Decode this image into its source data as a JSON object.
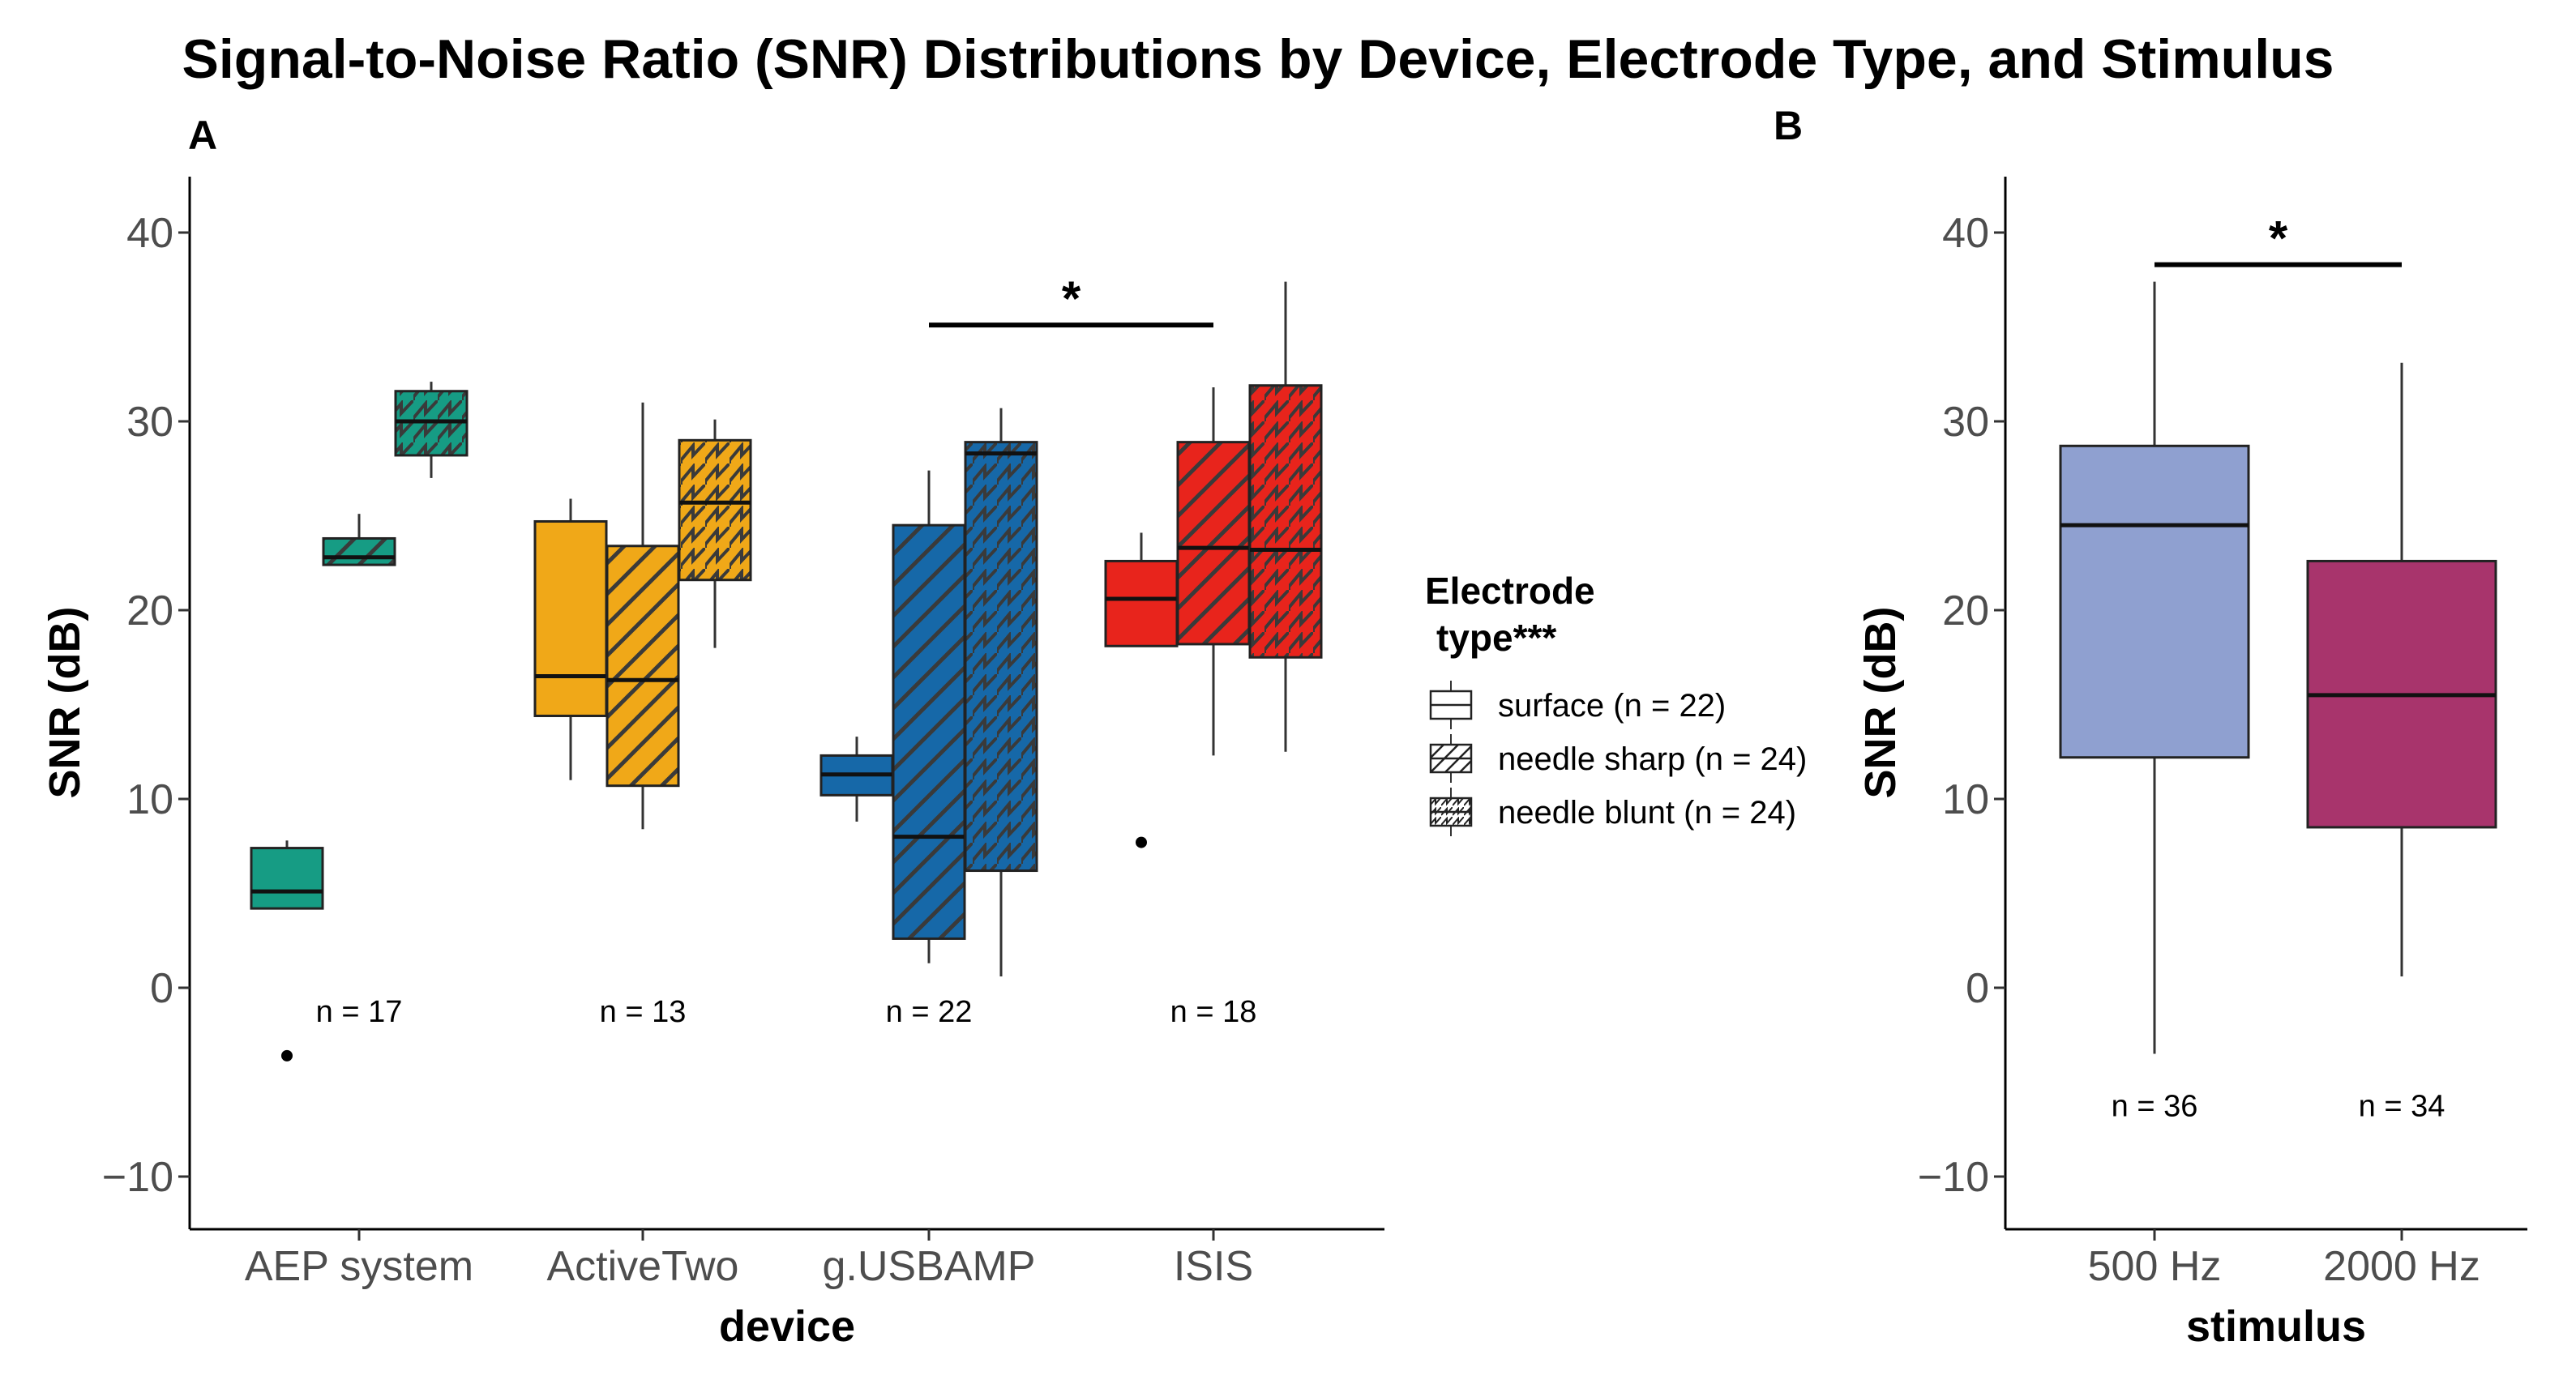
{
  "chart_data": [
    {
      "panel": "A",
      "type": "box",
      "title": "Signal-to-Noise Ratio (SNR) Distributions by Device, Electrode Type, and Stimulus",
      "xlabel": "device",
      "ylabel": "SNR (dB)",
      "ylim": [
        -12.5,
        42.5
      ],
      "yticks": [
        -10,
        0,
        10,
        20,
        30,
        40
      ],
      "ytick_labels": [
        "−10",
        "0",
        "10",
        "20",
        "30",
        "40"
      ],
      "categories": [
        "AEP system",
        "ActiveTwo",
        "g.USBAMP",
        "ISIS"
      ],
      "n_labels": [
        "n = 17",
        "n = 13",
        "n = 22",
        "n = 18"
      ],
      "n_label_y": -1.2,
      "colors": {
        "AEP system": "#169c84",
        "ActiveTwo": "#f0a818",
        "g.USBAMP": "#1668a8",
        "ISIS": "#e8241c"
      },
      "legend": {
        "title_line1": "Electrode",
        "title_line2": "type***",
        "entries": [
          {
            "label": "surface (n = 22)",
            "pattern": "none"
          },
          {
            "label": "needle sharp (n = 24)",
            "pattern": "hatch"
          },
          {
            "label": "needle blunt (n = 24)",
            "pattern": "zigzag"
          }
        ]
      },
      "boxes": [
        {
          "device": "AEP system",
          "type": "surface",
          "whisker_low": 4.2,
          "q1": 4.2,
          "median": 5.1,
          "q3": 7.4,
          "whisker_high": 7.8,
          "outliers": [
            -3.6
          ]
        },
        {
          "device": "AEP system",
          "type": "needle sharp",
          "whisker_low": 22.4,
          "q1": 22.4,
          "median": 22.8,
          "q3": 23.8,
          "whisker_high": 25.1,
          "outliers": []
        },
        {
          "device": "AEP system",
          "type": "needle blunt",
          "whisker_low": 27.0,
          "q1": 28.2,
          "median": 30.0,
          "q3": 31.6,
          "whisker_high": 32.1,
          "outliers": []
        },
        {
          "device": "ActiveTwo",
          "type": "surface",
          "whisker_low": 11.0,
          "q1": 14.4,
          "median": 16.5,
          "q3": 24.7,
          "whisker_high": 25.9,
          "outliers": []
        },
        {
          "device": "ActiveTwo",
          "type": "needle sharp",
          "whisker_low": 8.4,
          "q1": 10.7,
          "median": 16.3,
          "q3": 23.4,
          "whisker_high": 31.0,
          "outliers": []
        },
        {
          "device": "ActiveTwo",
          "type": "needle blunt",
          "whisker_low": 18.0,
          "q1": 21.6,
          "median": 25.7,
          "q3": 29.0,
          "whisker_high": 30.1,
          "outliers": []
        },
        {
          "device": "g.USBAMP",
          "type": "surface",
          "whisker_low": 8.8,
          "q1": 10.2,
          "median": 11.3,
          "q3": 12.3,
          "whisker_high": 13.3,
          "outliers": []
        },
        {
          "device": "g.USBAMP",
          "type": "needle sharp",
          "whisker_low": 1.3,
          "q1": 2.6,
          "median": 8.0,
          "q3": 24.5,
          "whisker_high": 27.4,
          "outliers": []
        },
        {
          "device": "g.USBAMP",
          "type": "needle blunt",
          "whisker_low": 0.6,
          "q1": 6.2,
          "median": 28.3,
          "q3": 28.9,
          "whisker_high": 30.7,
          "outliers": []
        },
        {
          "device": "ISIS",
          "type": "surface",
          "whisker_low": 18.1,
          "q1": 18.1,
          "median": 20.6,
          "q3": 22.6,
          "whisker_high": 24.1,
          "outliers": [
            7.7
          ]
        },
        {
          "device": "ISIS",
          "type": "needle sharp",
          "whisker_low": 12.3,
          "q1": 18.2,
          "median": 23.3,
          "q3": 28.9,
          "whisker_high": 31.8,
          "outliers": []
        },
        {
          "device": "ISIS",
          "type": "needle blunt",
          "whisker_low": 12.5,
          "q1": 17.5,
          "median": 23.2,
          "q3": 31.9,
          "whisker_high": 37.4,
          "outliers": []
        }
      ],
      "significance": {
        "label": "*",
        "y": 35.1,
        "from": "g.USBAMP",
        "to": "ISIS"
      }
    },
    {
      "panel": "B",
      "type": "box",
      "xlabel": "stimulus",
      "ylabel": "SNR (dB)",
      "ylim": [
        -12.5,
        42.5
      ],
      "yticks": [
        -10,
        0,
        10,
        20,
        30,
        40
      ],
      "ytick_labels": [
        "−10",
        "0",
        "10",
        "20",
        "30",
        "40"
      ],
      "categories": [
        "500 Hz",
        "2000 Hz"
      ],
      "n_labels": [
        "n = 36",
        "n = 34"
      ],
      "n_label_y": -6.2,
      "colors": {
        "500 Hz": "#8fa0d0",
        "2000 Hz": "#a8346c"
      },
      "boxes": [
        {
          "stimulus": "500 Hz",
          "whisker_low": -3.5,
          "q1": 12.2,
          "median": 24.5,
          "q3": 28.7,
          "whisker_high": 37.4,
          "outliers": []
        },
        {
          "stimulus": "2000 Hz",
          "whisker_low": 0.6,
          "q1": 8.5,
          "median": 15.5,
          "q3": 22.6,
          "whisker_high": 33.1,
          "outliers": []
        }
      ],
      "significance": {
        "label": "*",
        "y": 38.3,
        "from": "500 Hz",
        "to": "2000 Hz"
      }
    }
  ]
}
